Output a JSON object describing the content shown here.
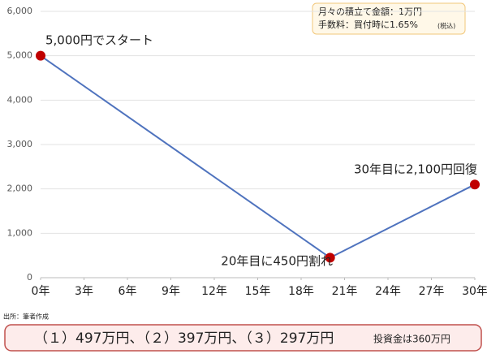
{
  "chart_data": {
    "type": "line",
    "x": [
      0,
      20,
      30
    ],
    "values": [
      5000,
      450,
      2100
    ],
    "color": "#4f73be",
    "marker_color": "#c00000",
    "xlim": [
      0,
      30
    ],
    "xticks": [
      {
        "value": 0,
        "label": "0年"
      },
      {
        "value": 3,
        "label": "3年"
      },
      {
        "value": 6,
        "label": "6年"
      },
      {
        "value": 9,
        "label": "9年"
      },
      {
        "value": 12,
        "label": "12年"
      },
      {
        "value": 15,
        "label": "15年"
      },
      {
        "value": 18,
        "label": "18年"
      },
      {
        "value": 21,
        "label": "21年"
      },
      {
        "value": 24,
        "label": "24年"
      },
      {
        "value": 27,
        "label": "27年"
      },
      {
        "value": 30,
        "label": "30年"
      }
    ],
    "ylim": [
      0,
      6000
    ],
    "yticks": [
      0,
      {
        "value": 1000,
        "label": "1,000"
      },
      {
        "value": 2000,
        "label": "2,000"
      },
      {
        "value": 3000,
        "label": "3,000"
      },
      {
        "value": 4000,
        "label": "4,000"
      },
      {
        "value": 5000,
        "label": "5,000"
      },
      {
        "value": 6000,
        "label": "6,000"
      }
    ],
    "grid": true,
    "annotations": [
      "5,000円でスタート",
      "20年目に450円割れ",
      "30年目に2,100円回復"
    ],
    "info_box": {
      "line1": "月々の積立て金額：1万円",
      "line2": "手数料：買付時に1.65%",
      "line2_note": "(税込)"
    },
    "source": "出所：筆者作成",
    "summary": {
      "main": "（１）497万円、（２）397万円、（３）297万円",
      "note": "投資金は360万円"
    }
  }
}
